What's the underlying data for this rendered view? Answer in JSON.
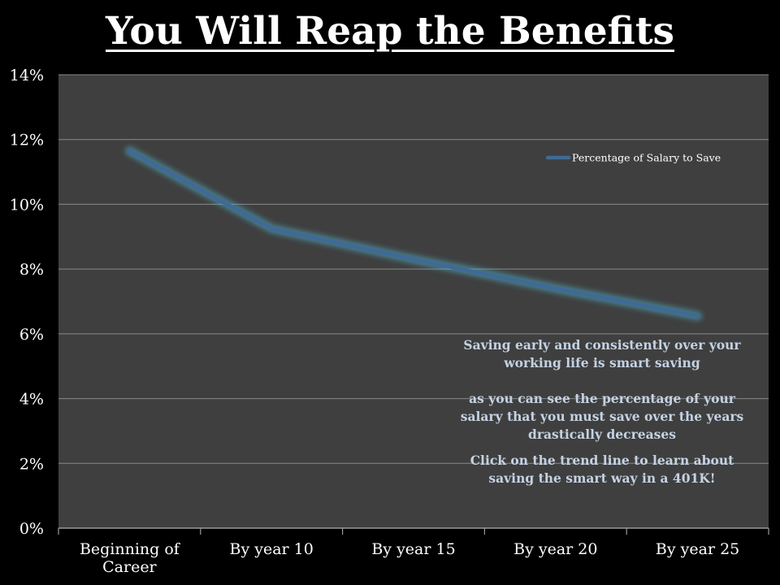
{
  "slide": {
    "title": "You Will Reap the Benefits"
  },
  "annotation": {
    "paragraph1": "Saving early and consistently over your working life is smart saving",
    "paragraph2": "as you can see the percentage of your salary that you must save over the years drastically decreases",
    "paragraph3": "Click on the trend line to learn about saving the smart way in a 401K!"
  },
  "chart_data": {
    "type": "line",
    "title": "",
    "xlabel": "",
    "ylabel": "",
    "categories": [
      "Beginning of Career",
      "By year 10",
      "By year 15",
      "By year 20",
      "By year 25"
    ],
    "category_lines": [
      [
        "Beginning of",
        "Career"
      ],
      [
        "By year 10"
      ],
      [
        "By year 15"
      ],
      [
        "By year 20"
      ],
      [
        "By year 25"
      ]
    ],
    "series": [
      {
        "name": "Percentage of Salary to Save",
        "values": [
          11.65,
          9.25,
          8.3,
          7.4,
          6.55
        ],
        "color": "#3f6a96"
      }
    ],
    "ylim": [
      0,
      14
    ],
    "yticks": [
      0,
      2,
      4,
      6,
      8,
      10,
      12,
      14
    ],
    "ytick_suffix": "%",
    "grid": true,
    "legend": "top-right",
    "plot_background": "#3f3f3f",
    "gridline_color": "#8a8a8a",
    "glow_color": "#4fb3cc"
  }
}
